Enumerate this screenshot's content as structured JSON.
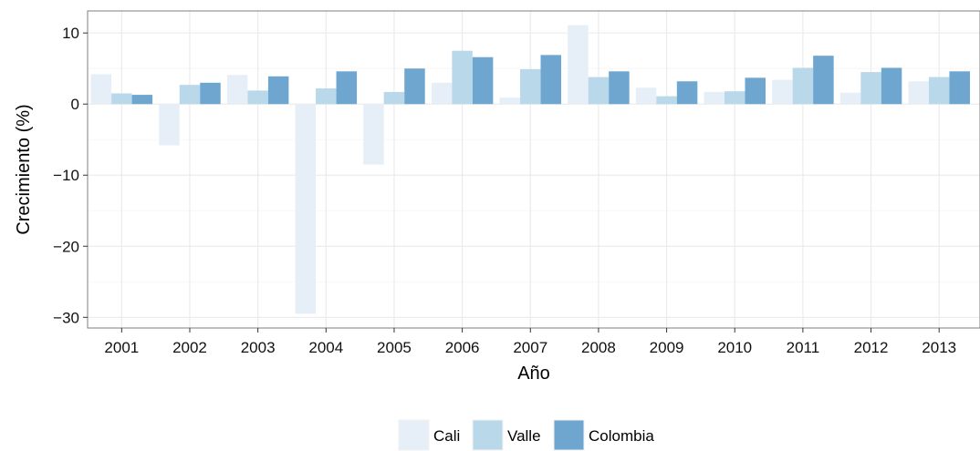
{
  "chart_data": {
    "type": "bar",
    "title": "",
    "xlabel": "Año",
    "ylabel": "Crecimiento (%)",
    "categories": [
      "2001",
      "2002",
      "2003",
      "2004",
      "2005",
      "2006",
      "2007",
      "2008",
      "2009",
      "2010",
      "2011",
      "2012",
      "2013"
    ],
    "series": [
      {
        "name": "Cali",
        "color": "#e6eff8",
        "values": [
          4.2,
          -5.8,
          4.1,
          -29.5,
          -8.5,
          3.0,
          0.9,
          11.1,
          2.3,
          1.7,
          3.4,
          1.6,
          3.2
        ]
      },
      {
        "name": "Valle",
        "color": "#b9d9ea",
        "values": [
          1.5,
          2.7,
          1.9,
          2.2,
          1.7,
          7.5,
          4.9,
          3.8,
          1.1,
          1.8,
          5.1,
          4.5,
          3.8
        ]
      },
      {
        "name": "Colombia",
        "color": "#6ea6d0",
        "values": [
          1.3,
          3.0,
          3.9,
          4.6,
          5.0,
          6.6,
          6.9,
          4.6,
          3.2,
          3.7,
          6.8,
          5.1,
          4.6
        ]
      }
    ],
    "y_ticks": [
      10,
      0,
      -10,
      -20,
      -30
    ],
    "y_tick_labels": [
      "10",
      "0",
      "−10",
      "−20",
      "−30"
    ],
    "ylim": [
      -31.5,
      13.1
    ],
    "grid": true,
    "legend_position": "bottom"
  }
}
